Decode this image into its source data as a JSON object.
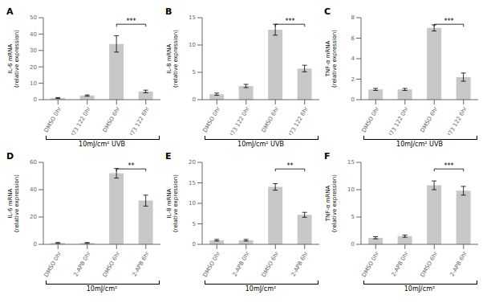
{
  "chart_data": [
    {
      "type": "bar",
      "title": "A",
      "ylabel": "IL-6 mRNA\n(relative expression)",
      "xlabel": "10mJ/cm² UVB",
      "categories": [
        "DMSO 0hr",
        "U73 122 0hr",
        "DMSO 6hr",
        "U73 122 6hr"
      ],
      "values": [
        1.0,
        2.5,
        34.0,
        5.0
      ],
      "errors": [
        0.3,
        0.4,
        5.0,
        0.8
      ],
      "ylim": [
        0,
        50
      ],
      "yticks": [
        0,
        10,
        20,
        30,
        40,
        50
      ],
      "color": "#c8c8c8",
      "grid": false,
      "annotations": [
        {
          "text": "***",
          "between": [
            "DMSO 6hr",
            "U73 122 6hr"
          ]
        }
      ]
    },
    {
      "type": "bar",
      "title": "B",
      "ylabel": "IL-8 mRNA\n(relative expression)",
      "xlabel": "10mJ/cm² UVB",
      "categories": [
        "DMSO 0hr",
        "U73 122 0hr",
        "DMSO 6hr",
        "U73 122 6hr"
      ],
      "values": [
        1.0,
        2.5,
        12.8,
        5.7
      ],
      "errors": [
        0.2,
        0.3,
        1.0,
        0.6
      ],
      "ylim": [
        0,
        15
      ],
      "yticks": [
        0,
        5,
        10,
        15
      ],
      "color": "#c8c8c8",
      "grid": false,
      "annotations": [
        {
          "text": "***",
          "between": [
            "DMSO 6hr",
            "U73 122 6hr"
          ]
        }
      ]
    },
    {
      "type": "bar",
      "title": "C",
      "ylabel": "TNF-α mRNA\n(relative expression)",
      "xlabel": "10mJ/cm² UVB",
      "categories": [
        "DMSO 0hr",
        "U73 122 0hr",
        "DMSO 6hr",
        "U73 122 6hr"
      ],
      "values": [
        1.0,
        1.0,
        7.0,
        2.2
      ],
      "errors": [
        0.1,
        0.1,
        0.3,
        0.4
      ],
      "ylim": [
        0,
        8
      ],
      "yticks": [
        0,
        2,
        4,
        6,
        8
      ],
      "color": "#c8c8c8",
      "grid": false,
      "annotations": [
        {
          "text": "***",
          "between": [
            "DMSO 6hr",
            "U73 122 6hr"
          ]
        }
      ]
    },
    {
      "type": "bar",
      "title": "D",
      "ylabel": "IL-6 mRNA\n(relative expression)",
      "xlabel": "10mJ/cm²",
      "categories": [
        "DMSO 0hr",
        "2-APB 0hr",
        "DMSO 6hr",
        "2-APB 6hr"
      ],
      "values": [
        1.0,
        1.0,
        52.0,
        32.0
      ],
      "errors": [
        0.3,
        0.3,
        3.5,
        4.0
      ],
      "ylim": [
        0,
        60
      ],
      "yticks": [
        0,
        20,
        40,
        60
      ],
      "color": "#c8c8c8",
      "grid": false,
      "annotations": [
        {
          "text": "**",
          "between": [
            "DMSO 6hr",
            "2-APB 6hr"
          ]
        }
      ]
    },
    {
      "type": "bar",
      "title": "E",
      "ylabel": "IL-8 mRNA\n(relative expression)",
      "xlabel": "10mJ/cm²",
      "categories": [
        "DMSO 0hr",
        "2-APB 0hr",
        "DMSO 6hr",
        "2-APB 6hr"
      ],
      "values": [
        1.0,
        1.0,
        14.0,
        7.2
      ],
      "errors": [
        0.2,
        0.2,
        0.8,
        0.6
      ],
      "ylim": [
        0,
        20
      ],
      "yticks": [
        0,
        5,
        10,
        15,
        20
      ],
      "color": "#c8c8c8",
      "grid": false,
      "annotations": [
        {
          "text": "**",
          "between": [
            "DMSO 6hr",
            "2-APB 6hr"
          ]
        }
      ]
    },
    {
      "type": "bar",
      "title": "F",
      "ylabel": "TNF-α mRNA\n(relative expression)",
      "xlabel": "10mJ/cm²",
      "categories": [
        "DMSO 0hr",
        "2-APB 0hr",
        "DMSO 6hr",
        "2-APB 6hr"
      ],
      "values": [
        1.2,
        1.5,
        10.8,
        9.8
      ],
      "errors": [
        0.2,
        0.2,
        0.8,
        0.8
      ],
      "ylim": [
        0,
        15
      ],
      "yticks": [
        0,
        5,
        10,
        15
      ],
      "color": "#c8c8c8",
      "grid": false,
      "annotations": [
        {
          "text": "***",
          "between": [
            "DMSO 6hr",
            "2-APB 6hr"
          ]
        }
      ]
    }
  ]
}
